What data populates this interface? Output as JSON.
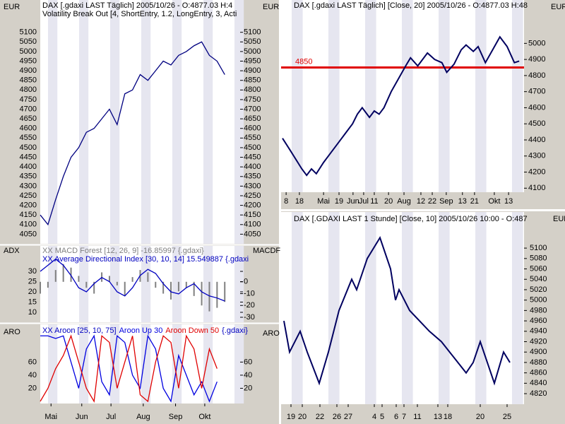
{
  "chart_data": [
    {
      "type": "line",
      "ylabel": "EUR",
      "subtitle": "Volatility Break Out [4, ShortEntry, 1.2, LongEntry, 3, Acti",
      "xlim": [
        0,
        130
      ],
      "ylim": [
        4000,
        5165
      ],
      "yticks": [
        4050,
        4100,
        4150,
        4200,
        4250,
        4300,
        4350,
        4400,
        4450,
        4500,
        4550,
        4600,
        4650,
        4700,
        4750,
        4800,
        4850,
        4900,
        4950,
        5000,
        5050,
        5100
      ],
      "series": [
        {
          "name": "DAX [.gdaxi LAST Täglich] 2005/10/26 - O:4877.03 H:4",
          "color": "#000080",
          "x": [
            0,
            5,
            10,
            15,
            20,
            25,
            30,
            35,
            40,
            45,
            50,
            55,
            60,
            65,
            70,
            75,
            80,
            85,
            90,
            95,
            100,
            105,
            110,
            115,
            120
          ],
          "values": [
            4150,
            4100,
            4230,
            4350,
            4450,
            4500,
            4580,
            4600,
            4650,
            4700,
            4620,
            4780,
            4800,
            4880,
            4850,
            4900,
            4950,
            4930,
            4980,
            5000,
            5030,
            5050,
            4980,
            4950,
            4880
          ]
        }
      ]
    },
    {
      "type": "line",
      "ylabel": "ADX",
      "y2label": "MACDF",
      "xlim": [
        0,
        130
      ],
      "ylim": [
        5.5,
        37.6
      ],
      "yticks": [
        10,
        15,
        20,
        25,
        30
      ],
      "y2lim": [
        -33.6,
        22
      ],
      "y2ticks": [
        0,
        -10,
        -20,
        -30
      ],
      "series": [
        {
          "name": "XX MACD Forest [12, 26, 9] -16.85997 {.gdaxi}",
          "color": "#808080",
          "style": "bar",
          "axis": "y2",
          "x": [
            0,
            5,
            10,
            15,
            20,
            25,
            30,
            35,
            40,
            45,
            50,
            55,
            60,
            65,
            70,
            75,
            80,
            85,
            90,
            95,
            100,
            105,
            110,
            115,
            120
          ],
          "values": [
            -10,
            -5,
            10,
            15,
            12,
            5,
            -5,
            -10,
            8,
            5,
            -3,
            -12,
            4,
            10,
            8,
            -5,
            -10,
            -15,
            -8,
            -5,
            -12,
            -20,
            -25,
            -22,
            -17
          ]
        },
        {
          "name": "XX Average Directional Index [30, 10, 14] 15.549887 {.gdaxi",
          "color": "#0000c0",
          "x": [
            0,
            5,
            10,
            15,
            20,
            25,
            30,
            35,
            40,
            45,
            50,
            55,
            60,
            65,
            70,
            75,
            80,
            85,
            90,
            95,
            100,
            105,
            110,
            115,
            120
          ],
          "values": [
            30,
            33,
            36,
            33,
            28,
            22,
            20,
            24,
            27,
            25,
            20,
            18,
            22,
            28,
            31,
            29,
            24,
            20,
            19,
            22,
            24,
            20,
            18,
            17,
            15.5
          ]
        }
      ]
    },
    {
      "type": "line",
      "ylabel": "ARO",
      "title": "XX Aroon [25, 10, 75]",
      "title_suffix": "{.gdaxi}",
      "xlim": [
        0,
        130
      ],
      "ylim": [
        0,
        110
      ],
      "yticks": [
        20,
        40,
        60
      ],
      "xticks": [
        {
          "value": 7,
          "label": "Mai"
        },
        {
          "value": 27,
          "label": "Jun"
        },
        {
          "value": 46,
          "label": "Jul"
        },
        {
          "value": 67,
          "label": "Aug"
        },
        {
          "value": 88,
          "label": "Sep"
        },
        {
          "value": 107,
          "label": "Okt"
        }
      ],
      "series": [
        {
          "name": "Aroon Up 30",
          "color": "#0000e0",
          "x": [
            0,
            5,
            10,
            15,
            20,
            25,
            30,
            35,
            40,
            45,
            50,
            55,
            60,
            65,
            70,
            75,
            80,
            85,
            90,
            95,
            100,
            105,
            110,
            115
          ],
          "values": [
            100,
            100,
            96,
            100,
            60,
            20,
            80,
            100,
            30,
            10,
            100,
            90,
            40,
            20,
            100,
            80,
            20,
            0,
            70,
            40,
            10,
            30,
            0,
            30
          ]
        },
        {
          "name": "Aroon Down 50",
          "color": "#e00000",
          "x": [
            0,
            5,
            10,
            15,
            20,
            25,
            30,
            35,
            40,
            45,
            50,
            55,
            60,
            65,
            70,
            75,
            80,
            85,
            90,
            95,
            100,
            105,
            110,
            115
          ],
          "values": [
            0,
            20,
            50,
            70,
            100,
            60,
            20,
            0,
            100,
            90,
            20,
            60,
            100,
            10,
            0,
            60,
            100,
            90,
            20,
            100,
            80,
            20,
            80,
            50
          ]
        }
      ]
    },
    {
      "type": "line",
      "ylabel": "EUR",
      "xlim": [
        0,
        100
      ],
      "ylim": [
        4075,
        5208
      ],
      "yticks": [
        4100,
        4200,
        4300,
        4400,
        4500,
        4600,
        4700,
        4800,
        4900,
        5000
      ],
      "hline": 4850,
      "hline_color": "#e00000",
      "xticks": [
        {
          "value": 1.5,
          "label": "8"
        },
        {
          "value": 7,
          "label": "18"
        },
        {
          "value": 17,
          "label": "Mai"
        },
        {
          "value": 23.4,
          "label": "19"
        },
        {
          "value": 29.2,
          "label": "Jun"
        },
        {
          "value": 33.6,
          "label": "Jul"
        },
        {
          "value": 38,
          "label": "11"
        },
        {
          "value": 43.9,
          "label": "20"
        },
        {
          "value": 50.3,
          "label": "Aug"
        },
        {
          "value": 57.3,
          "label": "12"
        },
        {
          "value": 62,
          "label": "22"
        },
        {
          "value": 67.8,
          "label": "Sep"
        },
        {
          "value": 74.5,
          "label": "13"
        },
        {
          "value": 79.5,
          "label": "21"
        },
        {
          "value": 87.7,
          "label": "Okt"
        },
        {
          "value": 93.6,
          "label": "13"
        }
      ],
      "series": [
        {
          "name": "DAX [.gdaxi LAST Täglich] [Close, 20] 2005/10/26 - O:4877.03 H:48",
          "color": "#000060",
          "x": [
            0,
            3,
            8,
            10,
            12,
            14,
            17,
            20,
            23,
            26,
            29,
            31,
            33,
            36,
            38,
            40,
            42,
            45,
            48,
            51,
            53,
            56,
            60,
            63,
            66,
            68,
            71,
            74,
            76,
            79,
            81,
            84,
            87,
            90,
            93,
            96,
            98
          ],
          "values": [
            4410,
            4340,
            4220,
            4180,
            4220,
            4190,
            4260,
            4320,
            4380,
            4440,
            4500,
            4560,
            4600,
            4540,
            4580,
            4560,
            4600,
            4700,
            4780,
            4860,
            4910,
            4860,
            4940,
            4900,
            4880,
            4820,
            4870,
            4960,
            4990,
            4950,
            4980,
            4880,
            4960,
            5040,
            4980,
            4880,
            4890
          ]
        }
      ]
    },
    {
      "type": "line",
      "ylabel": "EUR",
      "xlim": [
        0,
        342
      ],
      "ylim": [
        4782,
        5145
      ],
      "yticks": [
        4820,
        4840,
        4860,
        4880,
        4900,
        4920,
        4940,
        4960,
        4980,
        5000,
        5020,
        5040,
        5060,
        5080,
        5100
      ],
      "xticks": [
        {
          "value": 12,
          "label": "19"
        },
        {
          "value": 28,
          "label": "20"
        },
        {
          "value": 53,
          "label": "22"
        },
        {
          "value": 77,
          "label": "26"
        },
        {
          "value": 93,
          "label": "27"
        },
        {
          "value": 130,
          "label": "4"
        },
        {
          "value": 141,
          "label": "5"
        },
        {
          "value": 161,
          "label": "6"
        },
        {
          "value": 172,
          "label": "7"
        },
        {
          "value": 191,
          "label": "11"
        },
        {
          "value": 220,
          "label": "13"
        },
        {
          "value": 234,
          "label": "18"
        },
        {
          "value": 280,
          "label": "20"
        },
        {
          "value": 318,
          "label": "25"
        }
      ],
      "series": [
        {
          "name": "DAX [.GDAXI LAST 1 Stunde] [Close, 10] 2005/10/26 10:00 - O:487",
          "color": "#000060",
          "x": [
            2,
            10,
            25,
            35,
            52,
            65,
            80,
            98,
            105,
            120,
            138,
            153,
            160,
            165,
            180,
            208,
            225,
            260,
            270,
            280,
            295,
            300,
            313,
            322
          ],
          "values": [
            4960,
            4900,
            4940,
            4900,
            4840,
            4900,
            4980,
            5040,
            5020,
            5080,
            5120,
            5060,
            5000,
            5020,
            4980,
            4940,
            4920,
            4860,
            4880,
            4920,
            4860,
            4840,
            4900,
            4880
          ]
        }
      ]
    }
  ]
}
